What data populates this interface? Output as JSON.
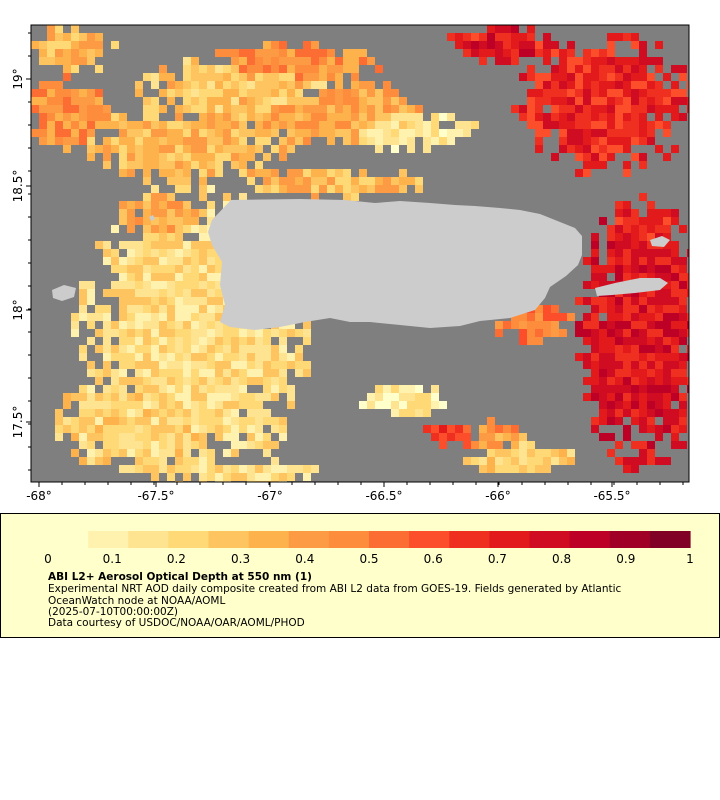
{
  "map": {
    "lon_ticks": [
      "-68°",
      "-67.5°",
      "-67°",
      "-66.5°",
      "-66°",
      "-65.5°"
    ],
    "lat_ticks": [
      "19°",
      "18.5°",
      "18°",
      "17.5°"
    ],
    "colors": {
      "no_data": "#7f7f7f",
      "land": "#cccccc",
      "frame": "#000000"
    }
  },
  "colorbar": {
    "ticks": [
      "0",
      "0.1",
      "0.2",
      "0.3",
      "0.4",
      "0.5",
      "0.6",
      "0.7",
      "0.8",
      "0.9",
      "1"
    ],
    "range": [
      0,
      1
    ],
    "colors": [
      "#ffffcc",
      "#fff2ae",
      "#fee391",
      "#fed976",
      "#fec45f",
      "#feb24c",
      "#fd9a44",
      "#fd8d3c",
      "#fc6d33",
      "#fc4e2a",
      "#ef3020",
      "#e31a1c",
      "#cf0c21",
      "#bd0026",
      "#a00026",
      "#800026"
    ]
  },
  "legend": {
    "title": "ABI L2+ Aerosol Optical Depth at 550 nm (1)",
    "description": "Experimental NRT AOD daily composite created from ABI L2 data from GOES-19. Fields generated by Atlantic OceanWatch node at NOAA/AOML",
    "date": "(2025-07-10T00:00:00Z)",
    "credit": "Data courtesy of USDOC/NOAA/OAR/AOML/PHOD"
  }
}
